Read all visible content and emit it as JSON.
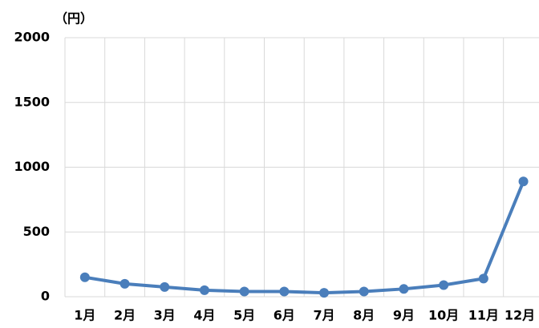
{
  "chart_data": {
    "type": "line",
    "y_label": "（円）",
    "categories": [
      "1月",
      "2月",
      "3月",
      "4月",
      "5月",
      "6月",
      "7月",
      "8月",
      "9月",
      "10月",
      "11月",
      "12月"
    ],
    "series": [
      {
        "name": "",
        "color": "#4a7ebb",
        "values": [
          150,
          100,
          75,
          50,
          40,
          40,
          30,
          40,
          60,
          90,
          140,
          890
        ]
      }
    ],
    "ylim": [
      0,
      2000
    ],
    "yticks": [
      0,
      500,
      1000,
      1500,
      2000
    ],
    "grid": true
  }
}
